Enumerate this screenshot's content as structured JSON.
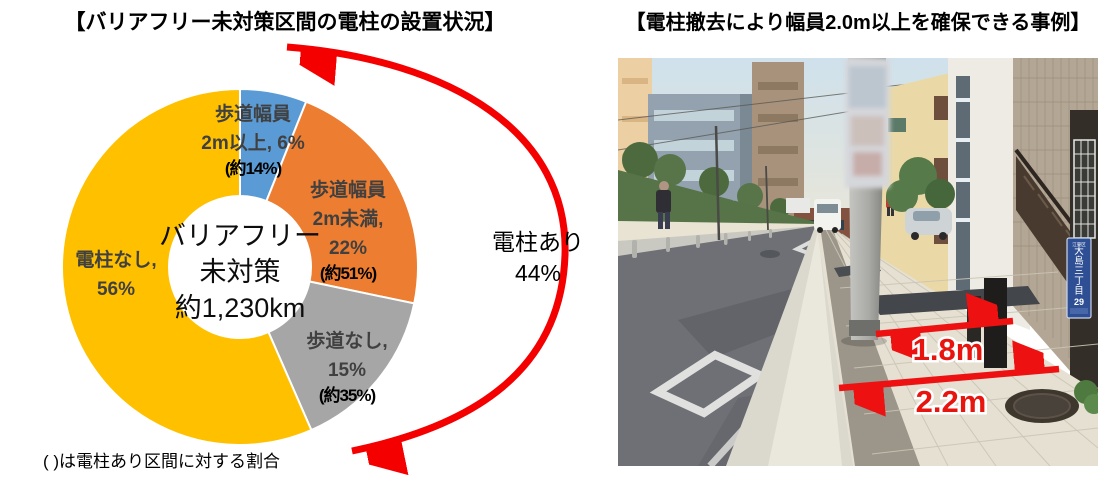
{
  "left_panel": {
    "title": "【バリアフリー未対策区間の電柱の設置状況】",
    "footnote": "( )は電柱あり区間に対する割合",
    "center_label": {
      "line1": "バリアフリー",
      "line2": "未対策",
      "line3": "約1,230km"
    },
    "callout": {
      "line1": "電柱あり",
      "line2": "44%"
    },
    "slice_labels": {
      "blue": [
        "歩道幅員",
        "2m以上, 6%",
        "(約14%)"
      ],
      "orange": [
        "歩道幅員",
        "2m未満,",
        "22%",
        "(約51%)"
      ],
      "gray": [
        "歩道なし,",
        "15%",
        "(約35%)"
      ],
      "yellow": [
        "電柱なし,",
        "56%"
      ]
    }
  },
  "chart_data": {
    "type": "pie",
    "subtype": "donut",
    "title": "バリアフリー未対策区間の電柱の設置状況",
    "center_text": "バリアフリー未対策 約1,230km",
    "total_length_km": "約1,230km",
    "segments": [
      {
        "id": "hodou-2m-ijou",
        "label": "歩道幅員2m以上",
        "pct": 6,
        "pct_of_pole_sections": "約14%",
        "color": "#5B9BD5"
      },
      {
        "id": "hodou-2m-miman",
        "label": "歩道幅員2m未満",
        "pct": 22,
        "pct_of_pole_sections": "約51%",
        "color": "#ED7D31"
      },
      {
        "id": "hodou-nashi",
        "label": "歩道なし",
        "pct": 15,
        "pct_of_pole_sections": "約35%",
        "color": "#A6A6A6"
      },
      {
        "id": "denchu-nashi",
        "label": "電柱なし",
        "pct": 56,
        "pct_of_pole_sections": null,
        "color": "#FFC000"
      }
    ],
    "callout": {
      "label": "電柱あり",
      "pct": 44
    },
    "footnote": "( )は電柱あり区間に対する割合",
    "accent_arrow_color": "#FF0000",
    "legend_position": "none",
    "start_angle_deg": 0,
    "direction": "clockwise"
  },
  "right_panel": {
    "title": "【電柱撤去により幅員2.0m以上を確保できる事例】",
    "measurements": {
      "inner": "1.8m",
      "outer": "2.2m"
    },
    "street_sign": {
      "district": "江東区",
      "name": "大島三丁目",
      "number": "29"
    }
  }
}
